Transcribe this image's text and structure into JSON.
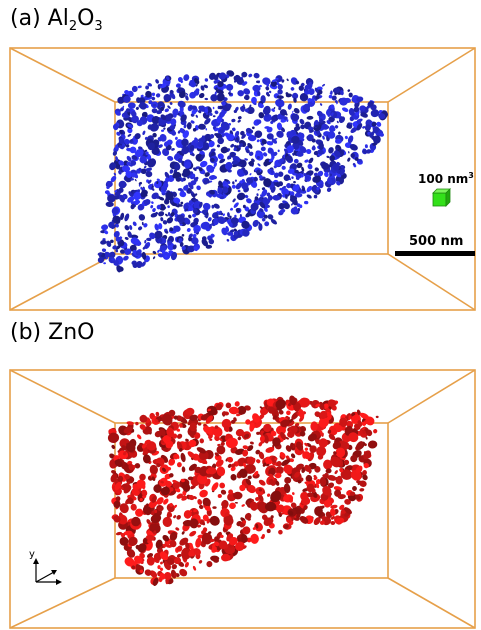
{
  "panels": {
    "a": {
      "label_prefix": "(a) Al",
      "label_sub1": "2",
      "label_mid": "O",
      "label_sub2": "3",
      "cluster_color": "#2b2ee0",
      "legend": {
        "volume_value": "100 nm",
        "volume_exp": "3",
        "volume_color": "#33e01a",
        "length_value": "500 nm"
      }
    },
    "b": {
      "label": "(b) ZnO",
      "cluster_color": "#e81818",
      "axes": {
        "y_label": "y"
      }
    }
  },
  "box_color": "#e6a04a"
}
